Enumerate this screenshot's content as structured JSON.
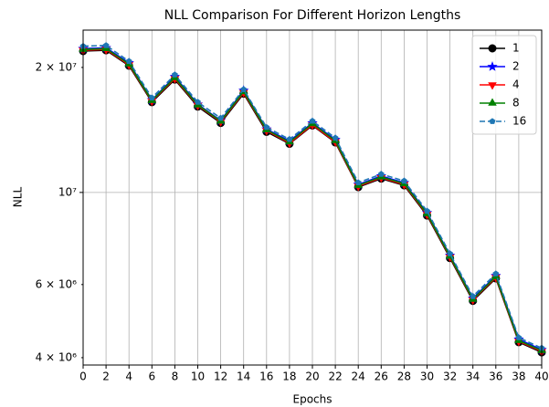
{
  "chart_data": {
    "type": "line",
    "title": "NLL Comparison For Different Horizon Lengths",
    "xlabel": "Epochs",
    "ylabel": "NLL",
    "x": [
      0,
      2,
      4,
      6,
      8,
      10,
      12,
      14,
      16,
      18,
      20,
      22,
      24,
      26,
      28,
      30,
      32,
      34,
      36,
      38,
      40
    ],
    "xlim": [
      0,
      40
    ],
    "xticks": [
      0,
      2,
      4,
      6,
      8,
      10,
      12,
      14,
      16,
      18,
      20,
      22,
      24,
      26,
      28,
      30,
      32,
      34,
      36,
      38,
      40
    ],
    "ylim": [
      3840000,
      24600000
    ],
    "yscale": "log",
    "yticks": [
      {
        "value": 10000000,
        "label": "10⁷"
      }
    ],
    "yminorticks": [
      {
        "value": 4000000,
        "label": "4 × 10⁶"
      },
      {
        "value": 6000000,
        "label": "6 × 10⁶"
      },
      {
        "value": 20000000,
        "label": "2 × 10⁷"
      }
    ],
    "grid": true,
    "legend": "upper right",
    "series": [
      {
        "name": "1",
        "color": "#000000",
        "marker": "circle",
        "dash": false,
        "values": [
          21900000,
          22000000,
          20200000,
          16500000,
          18700000,
          16100000,
          14700000,
          17300000,
          14000000,
          13100000,
          14500000,
          13200000,
          10300000,
          10800000,
          10400000,
          8800000,
          6950000,
          5480000,
          6210000,
          4360000,
          4120000
        ]
      },
      {
        "name": "2",
        "color": "#0000ff",
        "marker": "star",
        "dash": false,
        "values": [
          22200000,
          22300000,
          20500000,
          16700000,
          19000000,
          16300000,
          14900000,
          17600000,
          14200000,
          13300000,
          14700000,
          13400000,
          10450000,
          10950000,
          10550000,
          8930000,
          7050000,
          5560000,
          6300000,
          4430000,
          4180000
        ]
      },
      {
        "name": "4",
        "color": "#ff0000",
        "marker": "triangle-down",
        "dash": false,
        "values": [
          22000000,
          22100000,
          20300000,
          16600000,
          18800000,
          16200000,
          14800000,
          17400000,
          14100000,
          13150000,
          14550000,
          13250000,
          10350000,
          10850000,
          10450000,
          8850000,
          6990000,
          5510000,
          6240000,
          4380000,
          4140000
        ]
      },
      {
        "name": "8",
        "color": "#008000",
        "marker": "triangle-up",
        "dash": false,
        "values": [
          22100000,
          22200000,
          20400000,
          16650000,
          18900000,
          16250000,
          14850000,
          17500000,
          14150000,
          13230000,
          14650000,
          13330000,
          10400000,
          10900000,
          10500000,
          8890000,
          7020000,
          5530000,
          6270000,
          4400000,
          4160000
        ]
      },
      {
        "name": "16",
        "color": "#1f77b4",
        "marker": "pentagon",
        "dash": true,
        "values": [
          22500000,
          22600000,
          20700000,
          16900000,
          19200000,
          16500000,
          15100000,
          17700000,
          14350000,
          13430000,
          14860000,
          13530000,
          10560000,
          11070000,
          10660000,
          9020000,
          7120000,
          5620000,
          6370000,
          4470000,
          4220000
        ]
      }
    ]
  }
}
